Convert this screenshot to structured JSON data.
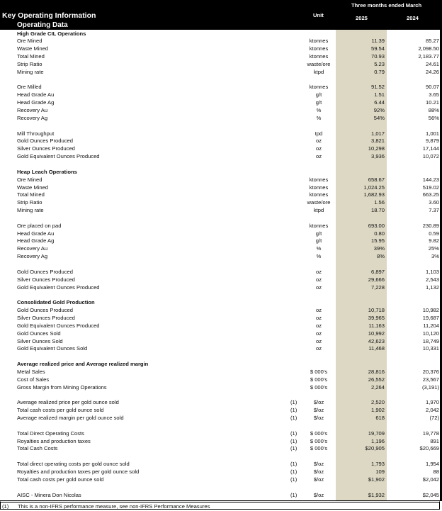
{
  "header": {
    "title": "Key Operating Information",
    "subtitle": "Operating Data",
    "period": "Three months ended March",
    "unit_label": "Unit",
    "year_current": "2025",
    "year_prior": "2024"
  },
  "colors": {
    "header_bg": "#000000",
    "current_col_shade": "#ddd8c4"
  },
  "rows": [
    {
      "type": "section",
      "label": "High Grade CIL Operations"
    },
    {
      "label": "Ore Mined",
      "unit": "ktonnes",
      "v2025": "11.39",
      "v2024": "85.27"
    },
    {
      "label": "Waste Mined",
      "unit": "ktonnes",
      "v2025": "59.54",
      "v2024": "2,098.50"
    },
    {
      "label": "Total Mined",
      "unit": "ktonnes",
      "v2025": "70.93",
      "v2024": "2,183.77"
    },
    {
      "label": "Strip Ratio",
      "unit": "waste/ore",
      "v2025": "5.23",
      "v2024": "24.61"
    },
    {
      "label": "Mining rate",
      "unit": "ktpd",
      "v2025": "0.79",
      "v2024": "24.26"
    },
    {
      "type": "blank"
    },
    {
      "label": "Ore Milled",
      "unit": "ktonnes",
      "v2025": "91.52",
      "v2024": "90.07"
    },
    {
      "label": "Head Grade Au",
      "unit": "g/t",
      "v2025": "1.51",
      "v2024": "3.65"
    },
    {
      "label": "Head Grade Ag",
      "unit": "g/t",
      "v2025": "6.44",
      "v2024": "10.21"
    },
    {
      "label": "Recovery Au",
      "unit": "%",
      "v2025": "92%",
      "v2024": "88%"
    },
    {
      "label": "Recovery Ag",
      "unit": "%",
      "v2025": "54%",
      "v2024": "56%"
    },
    {
      "type": "blank"
    },
    {
      "label": "Mill Throughput",
      "unit": "tpd",
      "v2025": "1,017",
      "v2024": "1,001"
    },
    {
      "label": "Gold Ounces Produced",
      "unit": "oz",
      "v2025": "3,821",
      "v2024": "9,879"
    },
    {
      "label": "Silver Ounces Produced",
      "unit": "oz",
      "v2025": "10,298",
      "v2024": "17,144"
    },
    {
      "label": "Gold Equivalent Ounces Produced",
      "unit": "oz",
      "v2025": "3,936",
      "v2024": "10,072"
    },
    {
      "type": "blank"
    },
    {
      "type": "section",
      "label": "Heap Leach Operations"
    },
    {
      "label": "Ore Mined",
      "unit": "ktonnes",
      "v2025": "658.67",
      "v2024": "144.23"
    },
    {
      "label": "Waste Mined",
      "unit": "ktonnes",
      "v2025": "1,024.25",
      "v2024": "519.02"
    },
    {
      "label": "Total Mined",
      "unit": "ktonnes",
      "v2025": "1,682.93",
      "v2024": "663.25"
    },
    {
      "label": "Strip Ratio",
      "unit": "waste/ore",
      "v2025": "1.56",
      "v2024": "3.60"
    },
    {
      "label": "Mining rate",
      "unit": "ktpd",
      "v2025": "18.70",
      "v2024": "7.37"
    },
    {
      "type": "blank"
    },
    {
      "label": "Ore placed on pad",
      "unit": "ktonnes",
      "v2025": "693.00",
      "v2024": "230.89"
    },
    {
      "label": "Head Grade Au",
      "unit": "g/t",
      "v2025": "0.80",
      "v2024": "0.59"
    },
    {
      "label": "Head Grade Ag",
      "unit": "g/t",
      "v2025": "15.95",
      "v2024": "9.82"
    },
    {
      "label": "Recovery Au",
      "unit": "%",
      "v2025": "39%",
      "v2024": "25%"
    },
    {
      "label": "Recovery Ag",
      "unit": "%",
      "v2025": "8%",
      "v2024": "3%"
    },
    {
      "type": "blank"
    },
    {
      "label": "Gold Ounces Produced",
      "unit": "oz",
      "v2025": "6,897",
      "v2024": "1,103"
    },
    {
      "label": "Silver Ounces Produced",
      "unit": "oz",
      "v2025": "29,666",
      "v2024": "2,543"
    },
    {
      "label": "Gold Equivalent Ounces Produced",
      "unit": "oz",
      "v2025": "7,228",
      "v2024": "1,132"
    },
    {
      "type": "blank"
    },
    {
      "type": "section",
      "label": "Consolidated Gold Production"
    },
    {
      "label": "Gold Ounces Produced",
      "unit": "oz",
      "v2025": "10,718",
      "v2024": "10,982"
    },
    {
      "label": "Silver Ounces Produced",
      "unit": "oz",
      "v2025": "39,965",
      "v2024": "19,687"
    },
    {
      "label": "Gold Equivalent Ounces Produced",
      "unit": "oz",
      "v2025": "11,163",
      "v2024": "11,204"
    },
    {
      "label": "Gold Ounces Sold",
      "unit": "oz",
      "v2025": "10,992",
      "v2024": "10,120"
    },
    {
      "label": "Silver Ounces Sold",
      "unit": "oz",
      "v2025": "42,623",
      "v2024": "18,749"
    },
    {
      "label": "Gold Equivalent Ounces Sold",
      "unit": "oz",
      "v2025": "11,468",
      "v2024": "10,331"
    },
    {
      "type": "blank"
    },
    {
      "type": "section",
      "label": "Average realized price and Average realized margin"
    },
    {
      "label": "Metal Sales",
      "unit": "$ 000's",
      "v2025": "28,816",
      "v2024": "20,376"
    },
    {
      "label": "Cost of Sales",
      "unit": "$ 000's",
      "v2025": "26,552",
      "v2024": "23,567"
    },
    {
      "label": "Gross Margin from Mining Operations",
      "unit": "$ 000's",
      "v2025": "2,264",
      "v2024": "(3,191)"
    },
    {
      "type": "blank"
    },
    {
      "label": "Average realized price per gold ounce sold",
      "note": "(1)",
      "unit": "$/oz",
      "v2025": "2,520",
      "v2024": "1,970"
    },
    {
      "label": "Total cash costs per gold ounce sold",
      "note": "(1)",
      "unit": "$/oz",
      "v2025": "1,902",
      "v2024": "2,042"
    },
    {
      "label": "Average realized margin per gold ounce sold",
      "note": "(1)",
      "unit": "$/oz",
      "v2025": "618",
      "v2024": "(72)"
    },
    {
      "type": "blank"
    },
    {
      "label": "Total Direct Operating Costs",
      "note": "(1)",
      "unit": "$ 000's",
      "v2025": "19,709",
      "v2024": "19,778"
    },
    {
      "label": "Royalties and production taxes",
      "note": "(1)",
      "unit": "$ 000's",
      "v2025": "1,196",
      "v2024": "891"
    },
    {
      "label": "Total Cash Costs",
      "note": "(1)",
      "unit": "$ 000's",
      "v2025": "$20,905",
      "v2024": "$20,669"
    },
    {
      "type": "blank"
    },
    {
      "label": "Total direct operating costs per gold ounce sold",
      "note": "(1)",
      "unit": "$/oz",
      "v2025": "1,793",
      "v2024": "1,954"
    },
    {
      "label": "Royalties and production taxes per gold ounce sold",
      "note": "(1)",
      "unit": "$/oz",
      "v2025": "109",
      "v2024": "88"
    },
    {
      "label": "Total cash costs per gold ounce sold",
      "note": "(1)",
      "unit": "$/oz",
      "v2025": "$1,902",
      "v2024": "$2,042"
    },
    {
      "type": "blank"
    },
    {
      "label": "AISC - Minera Don Nicolas",
      "note": "(1)",
      "unit": "$/oz",
      "v2025": "$1,932",
      "v2024": "$2,045"
    }
  ],
  "footnote": {
    "marker": "(1)",
    "text": "This is a non-IFRS performance measure, see non-IFRS Performance Measures"
  }
}
